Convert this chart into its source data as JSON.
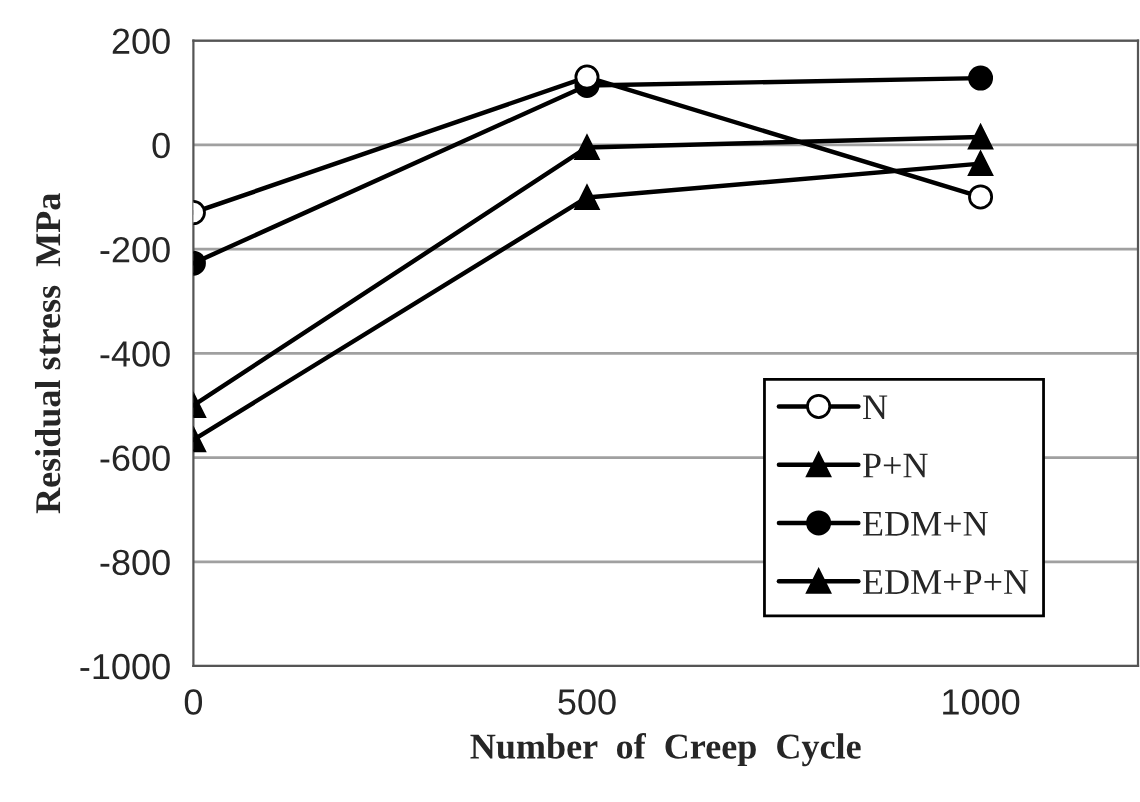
{
  "chart_data": {
    "type": "line",
    "xlabel": "Number  of  Creep  Cycle",
    "ylabel": "Residual stress  MPa",
    "x": [
      0,
      500,
      1000
    ],
    "xlim": [
      0,
      1200
    ],
    "xticks": [
      0,
      500,
      1000
    ],
    "ylim": [
      -1000,
      200
    ],
    "yticks": [
      -1000,
      -800,
      -600,
      -400,
      -200,
      0,
      200
    ],
    "grid": "y",
    "legend": "bottom right",
    "series": [
      {
        "name": "N",
        "color": "#000000",
        "marker": "open circle",
        "values": [
          -130,
          130,
          -100
        ]
      },
      {
        "name": "P+N",
        "color": "#000000",
        "marker": "triangle",
        "values": [
          -500,
          -5,
          15
        ]
      },
      {
        "name": "EDM+N",
        "color": "#000000",
        "marker": "circle",
        "values": [
          -227,
          114,
          128
        ]
      },
      {
        "name": "EDM+P+N",
        "color": "#000000",
        "marker": "triangle",
        "values": [
          -566,
          -101,
          -36
        ]
      }
    ]
  }
}
